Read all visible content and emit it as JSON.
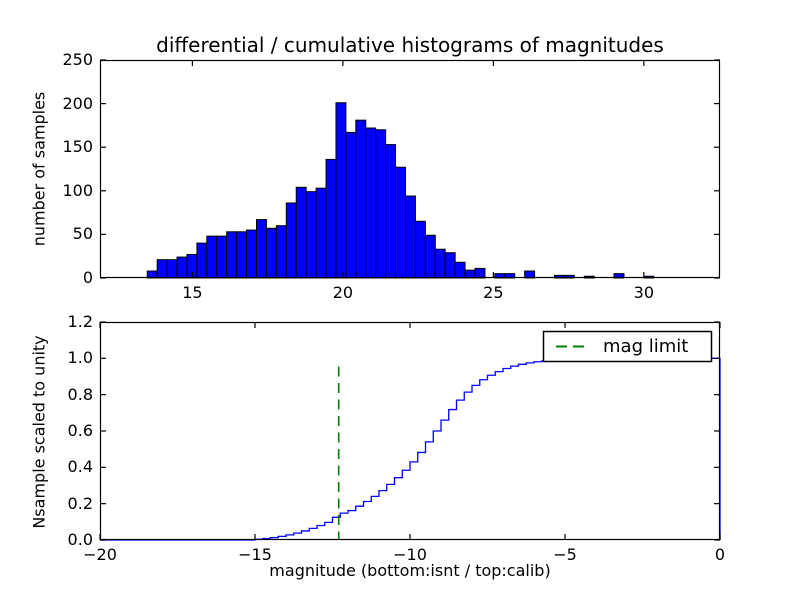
{
  "figure": {
    "title": "differential / cumulative histograms of magnitudes",
    "background": "#ffffff",
    "axis_color": "#000000"
  },
  "top_plot": {
    "ylabel": "number of samples",
    "xtick_labels": [
      "15",
      "20",
      "25",
      "30"
    ],
    "ytick_labels": [
      "0",
      "50",
      "100",
      "150",
      "200",
      "250"
    ]
  },
  "bottom_plot": {
    "xlabel": "magnitude (bottom:isnt / top:calib)",
    "ylabel": "Nsample scaled to unity",
    "xtick_labels": [
      "−20",
      "−15",
      "−10",
      "−5",
      "0"
    ],
    "ytick_labels": [
      "0.0",
      "0.2",
      "0.4",
      "0.6",
      "0.8",
      "1.0",
      "1.2"
    ]
  },
  "legend": {
    "label": "mag limit",
    "line_color": "#008000",
    "line_style": "dashed",
    "position": "upper right"
  },
  "chart_data": [
    {
      "type": "bar",
      "subtype": "histogram",
      "title": "differential / cumulative histograms of magnitudes",
      "xlabel": "",
      "ylabel": "number of samples",
      "xlim": [
        11.93,
        32.53
      ],
      "ylim": [
        0,
        250
      ],
      "xticks": [
        15,
        20,
        25,
        30
      ],
      "yticks": [
        0,
        50,
        100,
        150,
        200,
        250
      ],
      "grid": false,
      "bar_color": "#0000ff",
      "bar_edge_color": "#000000",
      "bin_start": 13.5,
      "bin_width": 0.33,
      "counts": [
        8,
        21,
        21,
        24,
        27,
        40,
        48,
        48,
        53,
        53,
        55,
        67,
        57,
        60,
        86,
        104,
        99,
        103,
        136,
        201,
        167,
        181,
        172,
        170,
        153,
        127,
        94,
        65,
        49,
        33,
        29,
        18,
        9,
        11,
        0,
        5,
        5,
        0,
        8,
        0,
        0,
        3,
        3,
        0,
        2,
        0,
        0,
        5,
        0,
        0,
        2,
        0
      ]
    },
    {
      "type": "line",
      "subtype": "cumulative-step",
      "xlabel": "magnitude (bottom:isnt / top:calib)",
      "ylabel": "Nsample scaled to unity",
      "xlim": [
        -20,
        0
      ],
      "ylim": [
        0,
        1.2
      ],
      "xticks": [
        -20,
        -15,
        -10,
        -5,
        0
      ],
      "yticks": [
        0.0,
        0.2,
        0.4,
        0.6,
        0.8,
        1.0,
        1.2
      ],
      "grid": false,
      "line_color": "#0000ff",
      "step_start": -15.0,
      "step_width": 0.25,
      "cumulative_values": [
        0.004,
        0.008,
        0.013,
        0.02,
        0.028,
        0.038,
        0.05,
        0.064,
        0.08,
        0.097,
        0.125,
        0.148,
        0.162,
        0.186,
        0.212,
        0.24,
        0.272,
        0.306,
        0.343,
        0.384,
        0.43,
        0.482,
        0.54,
        0.6,
        0.66,
        0.718,
        0.77,
        0.814,
        0.851,
        0.882,
        0.907,
        0.927,
        0.944,
        0.957,
        0.967,
        0.975,
        0.981,
        0.986,
        0.989,
        0.992,
        0.994,
        0.995,
        0.996,
        0.997,
        0.998,
        0.9985,
        0.999,
        0.9993,
        0.9996,
        0.9998,
        0.9999,
        1.0
      ],
      "plateau_to_x": 0,
      "final_drop_at_x": 0,
      "vline": {
        "x": -12.3,
        "ymin": 0,
        "ymax": 0.955,
        "color": "#008000",
        "style": "dashed",
        "label": "mag limit"
      },
      "legend": {
        "label": "mag limit",
        "position": "upper right"
      }
    }
  ]
}
